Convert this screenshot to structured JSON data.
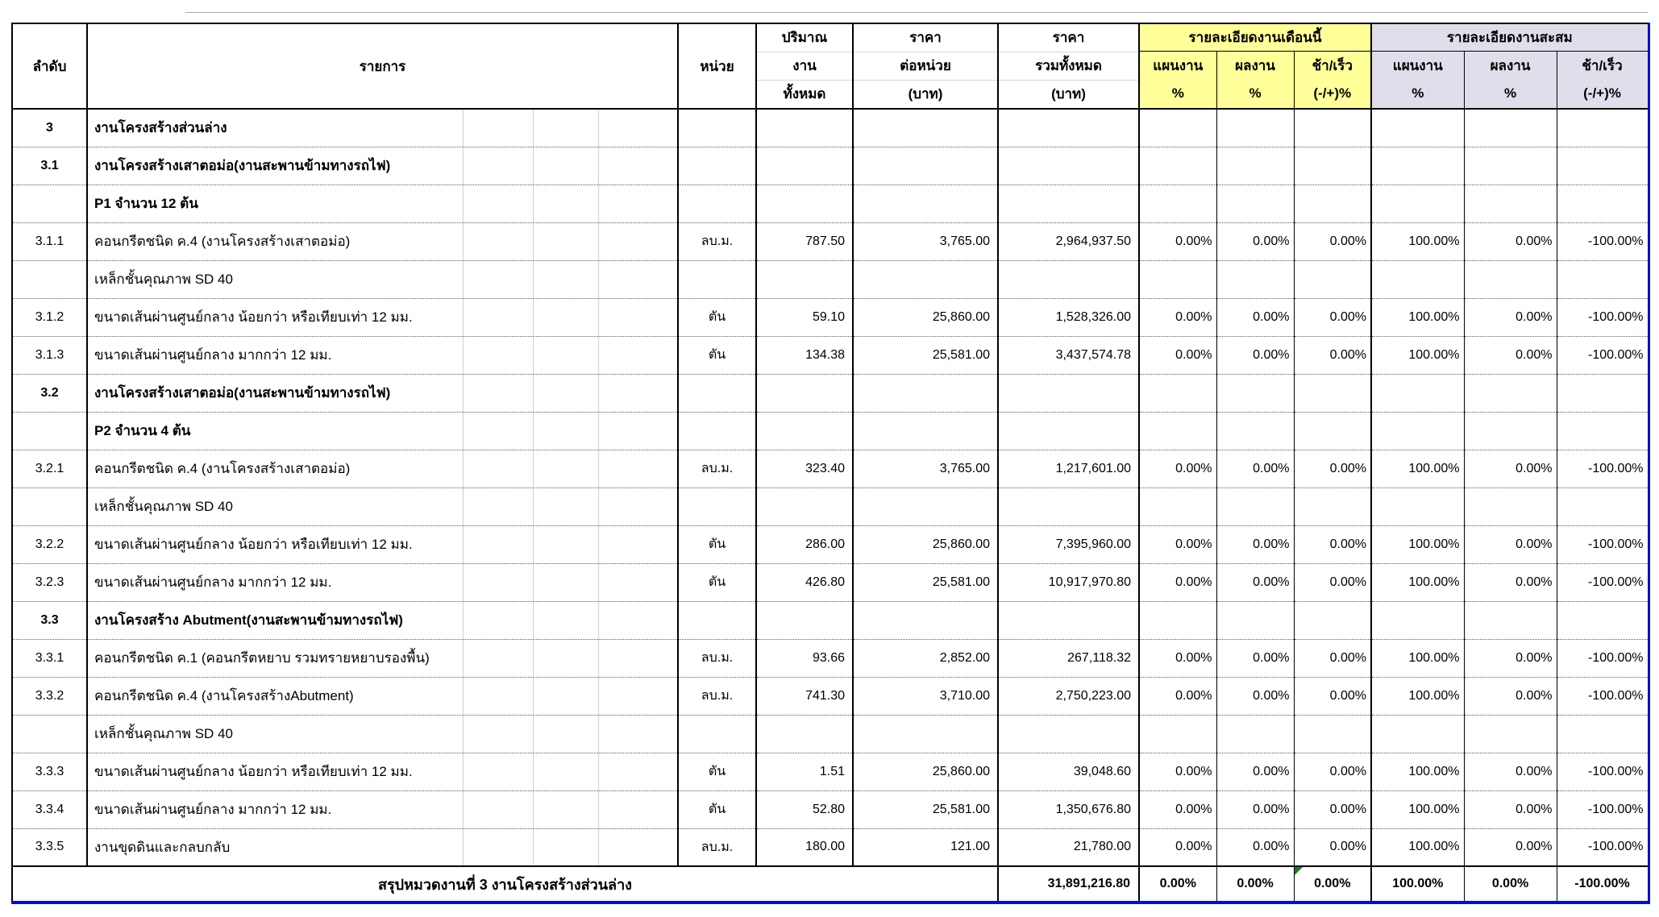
{
  "colors": {
    "month_section_bg": "#FFFF99",
    "cumulative_section_bg": "#E1DEEB",
    "sheet_edge_blue": "#0010C4",
    "corner_marker_green": "#1E7A1E"
  },
  "header": {
    "no": "ลำดับ",
    "description": "รายการ",
    "unit": "หน่วย",
    "qty_line1": "ปริมาณ",
    "qty_line2": "งาน",
    "qty_line3": "ทั้งหมด",
    "unit_price_line1": "ราคา",
    "unit_price_line2": "ต่อหน่วย",
    "unit_price_line3": "(บาท)",
    "total_price_line1": "ราคา",
    "total_price_line2": "รวมทั้งหมด",
    "total_price_line3": "(บาท)",
    "month_group": "รายละเอียดงานเดือนนี้",
    "cumulative_group": "รายละเอียดงานสะสม",
    "plan": "แผนงาน",
    "result": "ผลงาน",
    "diff": "ช้า/เร็ว",
    "pct": "%",
    "diff_pct": "(-/+)%"
  },
  "rows": [
    {
      "t": "cat",
      "no": "3",
      "desc": "งานโครงสร้างส่วนล่าง"
    },
    {
      "t": "cat",
      "no": "3.1",
      "desc": "งานโครงสร้างเสาตอม่อ(งานสะพานข้ามทางรถไฟ)"
    },
    {
      "t": "cat",
      "no": "",
      "desc": "P1 จำนวน 12 ต้น"
    },
    {
      "t": "item",
      "no": "3.1.1",
      "desc": "คอนกรีตชนิด ค.4 (งานโครงสร้างเสาตอม่อ)",
      "unit": "ลบ.ม.",
      "qty": "787.50",
      "up": "3,765.00",
      "total": "2,964,937.50",
      "pm": "0.00%",
      "rm": "0.00%",
      "dm": "0.00%",
      "pc": "100.00%",
      "rc": "0.00%",
      "dc": "-100.00%"
    },
    {
      "t": "label",
      "no": "",
      "desc": "เหล็กชั้นคุณภาพ SD 40"
    },
    {
      "t": "item",
      "no": "3.1.2",
      "desc": "ขนาดเส้นผ่านศูนย์กลาง น้อยกว่า หรือเทียบเท่า 12 มม.",
      "unit": "ตัน",
      "qty": "59.10",
      "up": "25,860.00",
      "total": "1,528,326.00",
      "pm": "0.00%",
      "rm": "0.00%",
      "dm": "0.00%",
      "pc": "100.00%",
      "rc": "0.00%",
      "dc": "-100.00%"
    },
    {
      "t": "item",
      "no": "3.1.3",
      "desc": "ขนาดเส้นผ่านศูนย์กลาง มากกว่า 12 มม.",
      "unit": "ตัน",
      "qty": "134.38",
      "up": "25,581.00",
      "total": "3,437,574.78",
      "pm": "0.00%",
      "rm": "0.00%",
      "dm": "0.00%",
      "pc": "100.00%",
      "rc": "0.00%",
      "dc": "-100.00%"
    },
    {
      "t": "cat",
      "no": "3.2",
      "desc": "งานโครงสร้างเสาตอม่อ(งานสะพานข้ามทางรถไฟ)"
    },
    {
      "t": "cat",
      "no": "",
      "desc": "P2 จำนวน 4 ต้น"
    },
    {
      "t": "item",
      "no": "3.2.1",
      "desc": "คอนกรีตชนิด ค.4 (งานโครงสร้างเสาตอม่อ)",
      "unit": "ลบ.ม.",
      "qty": "323.40",
      "up": "3,765.00",
      "total": "1,217,601.00",
      "pm": "0.00%",
      "rm": "0.00%",
      "dm": "0.00%",
      "pc": "100.00%",
      "rc": "0.00%",
      "dc": "-100.00%"
    },
    {
      "t": "label",
      "no": "",
      "desc": "เหล็กชั้นคุณภาพ SD 40"
    },
    {
      "t": "item",
      "no": "3.2.2",
      "desc": "ขนาดเส้นผ่านศูนย์กลาง น้อยกว่า หรือเทียบเท่า 12 มม.",
      "unit": "ตัน",
      "qty": "286.00",
      "up": "25,860.00",
      "total": "7,395,960.00",
      "pm": "0.00%",
      "rm": "0.00%",
      "dm": "0.00%",
      "pc": "100.00%",
      "rc": "0.00%",
      "dc": "-100.00%"
    },
    {
      "t": "item",
      "no": "3.2.3",
      "desc": "ขนาดเส้นผ่านศูนย์กลาง มากกว่า 12 มม.",
      "unit": "ตัน",
      "qty": "426.80",
      "up": "25,581.00",
      "total": "10,917,970.80",
      "pm": "0.00%",
      "rm": "0.00%",
      "dm": "0.00%",
      "pc": "100.00%",
      "rc": "0.00%",
      "dc": "-100.00%"
    },
    {
      "t": "cat",
      "no": "3.3",
      "desc": "งานโครงสร้าง Abutment(งานสะพานข้ามทางรถไฟ)"
    },
    {
      "t": "item",
      "no": "3.3.1",
      "desc": "คอนกรีตชนิด ค.1 (คอนกรีตหยาบ รวมทรายหยาบรองพื้น)",
      "unit": "ลบ.ม.",
      "qty": "93.66",
      "up": "2,852.00",
      "total": "267,118.32",
      "pm": "0.00%",
      "rm": "0.00%",
      "dm": "0.00%",
      "pc": "100.00%",
      "rc": "0.00%",
      "dc": "-100.00%"
    },
    {
      "t": "item",
      "no": "3.3.2",
      "desc": "คอนกรีตชนิด ค.4 (งานโครงสร้างAbutment)",
      "unit": "ลบ.ม.",
      "qty": "741.30",
      "up": "3,710.00",
      "total": "2,750,223.00",
      "pm": "0.00%",
      "rm": "0.00%",
      "dm": "0.00%",
      "pc": "100.00%",
      "rc": "0.00%",
      "dc": "-100.00%"
    },
    {
      "t": "label",
      "no": "",
      "desc": "เหล็กชั้นคุณภาพ SD 40"
    },
    {
      "t": "item",
      "no": "3.3.3",
      "desc": "ขนาดเส้นผ่านศูนย์กลาง น้อยกว่า หรือเทียบเท่า 12 มม.",
      "unit": "ตัน",
      "qty": "1.51",
      "up": "25,860.00",
      "total": "39,048.60",
      "pm": "0.00%",
      "rm": "0.00%",
      "dm": "0.00%",
      "pc": "100.00%",
      "rc": "0.00%",
      "dc": "-100.00%"
    },
    {
      "t": "item",
      "no": "3.3.4",
      "desc": "ขนาดเส้นผ่านศูนย์กลาง มากกว่า 12 มม.",
      "unit": "ตัน",
      "qty": "52.80",
      "up": "25,581.00",
      "total": "1,350,676.80",
      "pm": "0.00%",
      "rm": "0.00%",
      "dm": "0.00%",
      "pc": "100.00%",
      "rc": "0.00%",
      "dc": "-100.00%"
    },
    {
      "t": "item",
      "no": "3.3.5",
      "desc": "งานขุดดินและกลบกลับ",
      "unit": "ลบ.ม.",
      "qty": "180.00",
      "up": "121.00",
      "total": "21,780.00",
      "pm": "0.00%",
      "rm": "0.00%",
      "dm": "0.00%",
      "pc": "100.00%",
      "rc": "0.00%",
      "dc": "-100.00%"
    }
  ],
  "footer": {
    "label": "สรุปหมวดงานที่ 3 งานโครงสร้างส่วนล่าง",
    "total": "31,891,216.80",
    "pm": "0.00%",
    "rm": "0.00%",
    "dm": "0.00%",
    "pc": "100.00%",
    "rc": "0.00%",
    "dc": "-100.00%"
  }
}
